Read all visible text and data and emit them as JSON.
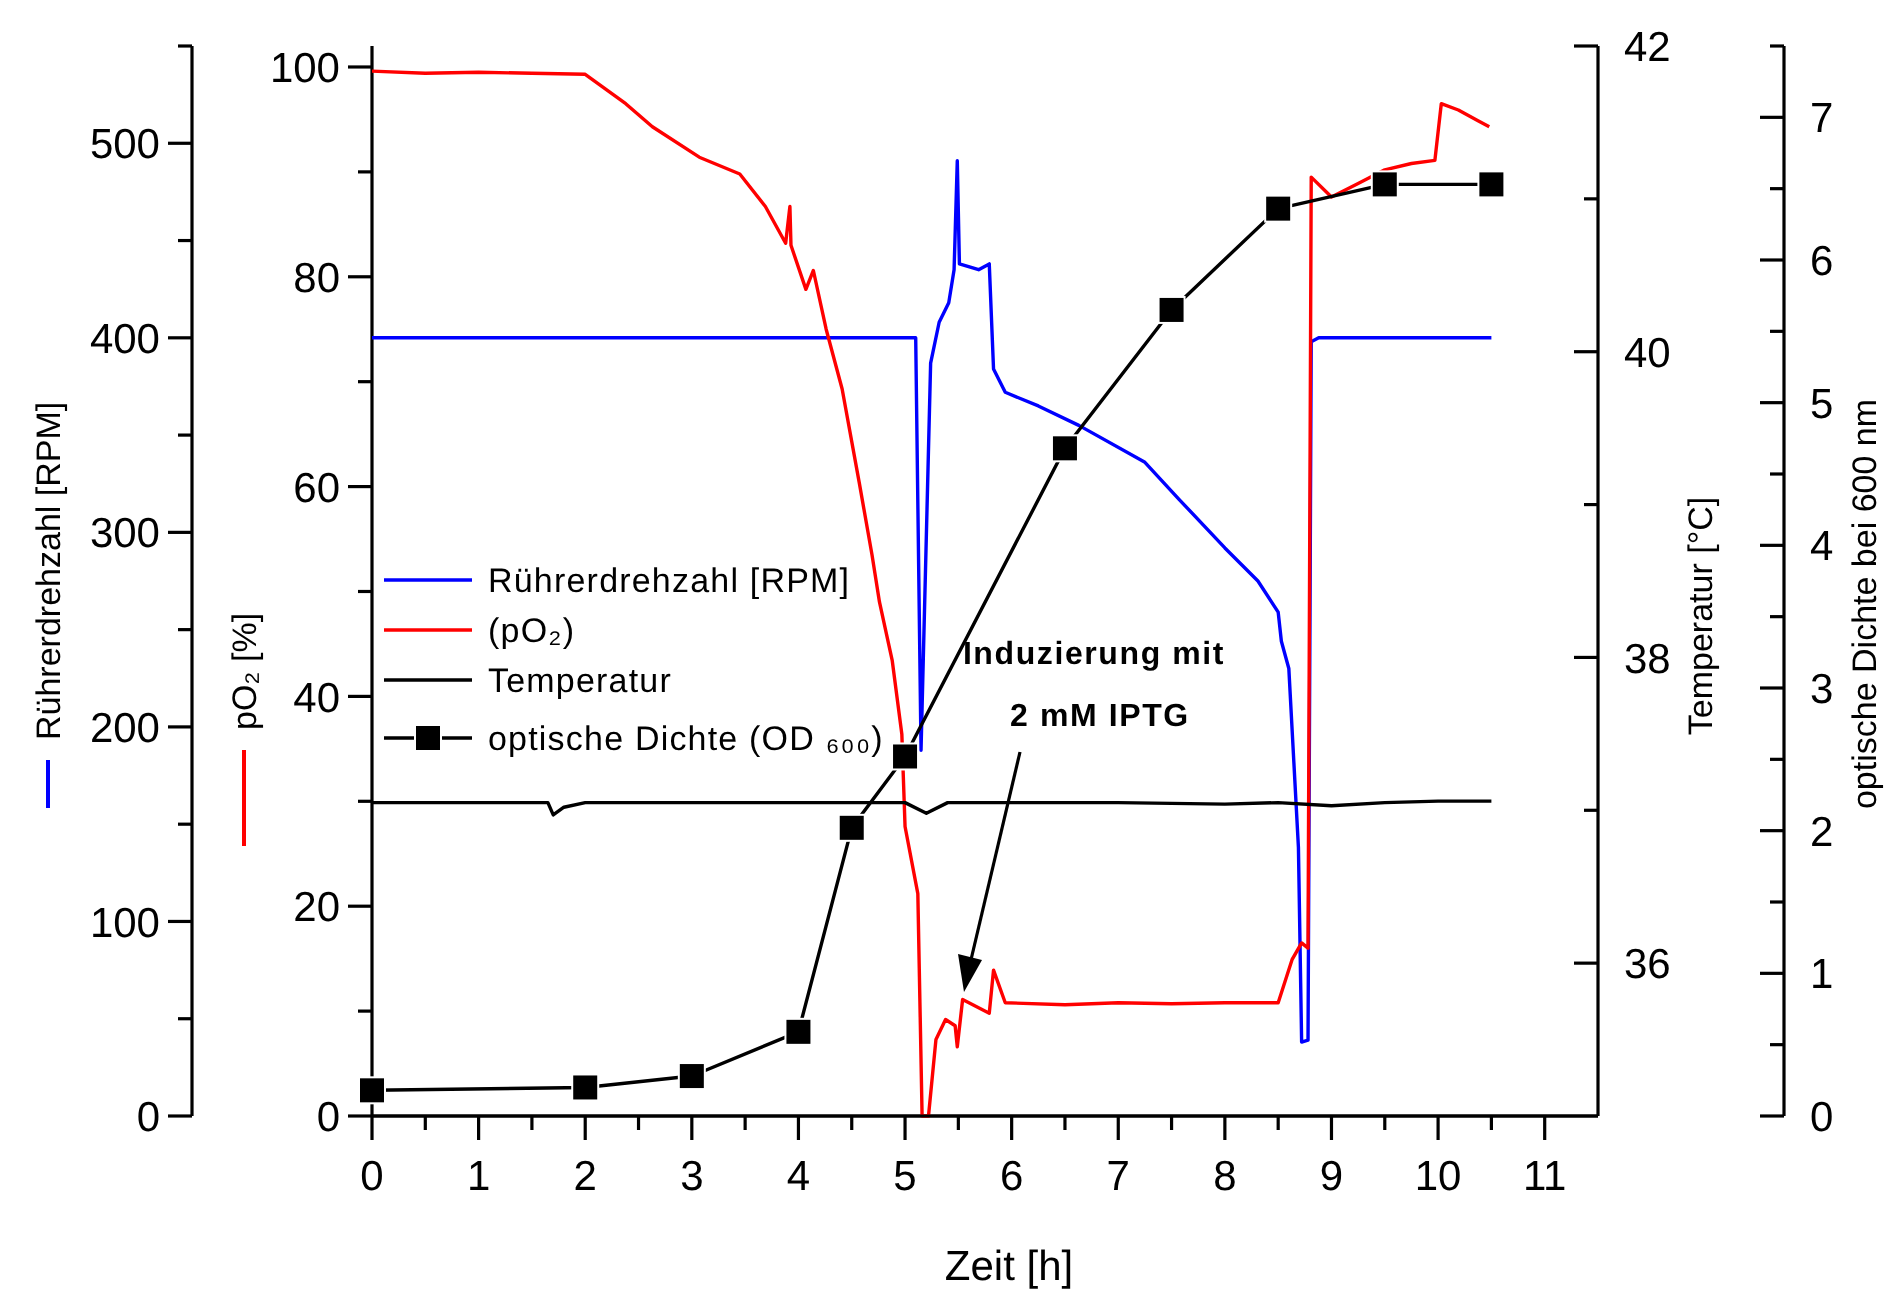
{
  "chart_data": [
    {
      "type": "line",
      "xlabel": "Zeit [h]",
      "ylabel": "pO₂ [%]",
      "y2label": "Rührerdrehzahl [RPM]",
      "xlim": [
        0,
        11.5
      ],
      "xticks": [
        0,
        {
          "value": 0.5,
          "label": null
        },
        1,
        {
          "value": 1.5,
          "label": null
        },
        2,
        {
          "value": 2.5,
          "label": null
        },
        3,
        {
          "value": 3.5,
          "label": null
        },
        4,
        {
          "value": 4.5,
          "label": null
        },
        5,
        {
          "value": 5.5,
          "label": null
        },
        6,
        {
          "value": 6.5,
          "label": null
        },
        7,
        {
          "value": 7.5,
          "label": null
        },
        8,
        {
          "value": 8.5,
          "label": null
        },
        9,
        {
          "value": 9.5,
          "label": null
        },
        10,
        {
          "value": 10.5,
          "label": null
        },
        11
      ],
      "ylim": [
        0,
        102
      ],
      "yticks": [
        0,
        {
          "value": 10,
          "label": null
        },
        20,
        {
          "value": 30,
          "label": null
        },
        40,
        {
          "value": 50,
          "label": null
        },
        60,
        {
          "value": 70,
          "label": null
        },
        80,
        {
          "value": 90,
          "label": null
        },
        100
      ],
      "y2lim": [
        0,
        550
      ],
      "y2ticks": [
        0,
        100,
        200,
        300,
        400,
        500
      ],
      "grid": false,
      "legend": "left",
      "line_style": "solid",
      "marker": "none",
      "series": [
        {
          "name": "Rührerdrehzahl [RPM]",
          "color": "#0000ff",
          "axis": "y2",
          "x": [
            0,
            1,
            2,
            3,
            4,
            5.1,
            5.15,
            5.24,
            5.32,
            5.41,
            5.46,
            5.49,
            5.51,
            5.69,
            5.79,
            5.83,
            5.94,
            6.25,
            6.63,
            7.25,
            7.57,
            8.0,
            8.31,
            8.5,
            8.53,
            8.6,
            8.69,
            8.72,
            8.78,
            8.81,
            8.88,
            9.5,
            10.5
          ],
          "values": [
            400,
            400,
            400,
            400,
            400,
            400,
            188,
            387,
            408,
            418,
            435,
            491,
            438,
            435,
            438,
            384,
            372,
            365,
            355,
            336,
            317,
            292,
            275,
            259,
            244,
            230,
            138,
            38,
            39,
            398,
            400,
            400,
            400
          ]
        },
        {
          "name": "(pO₂)",
          "color": "#ff0000",
          "x": [
            0,
            0.5,
            1,
            1.5,
            2,
            2.38,
            2.63,
            3.07,
            3.45,
            3.69,
            3.88,
            3.92,
            3.93,
            4.07,
            4.14,
            4.26,
            4.41,
            4.57,
            4.69,
            4.76,
            4.88,
            4.97,
            5.0,
            5.12,
            5.16,
            5.22,
            5.29,
            5.38,
            5.47,
            5.49,
            5.54,
            5.79,
            5.83,
            5.94,
            6.5,
            7,
            7.5,
            8,
            8.5,
            8.63,
            8.72,
            8.78,
            8.81,
            9.0,
            9.25,
            9.5,
            9.75,
            9.97,
            10.03,
            10.19,
            10.37,
            10.48
          ],
          "values": [
            99.6,
            99.4,
            99.5,
            99.4,
            99.3,
            96.5,
            94.3,
            91.4,
            89.8,
            86.7,
            83.2,
            86.7,
            83,
            78.8,
            80.6,
            75,
            69.3,
            60.4,
            53.5,
            49,
            43.4,
            36.4,
            27.6,
            21.2,
            0,
            0,
            7.3,
            9.2,
            8.6,
            6.6,
            11.1,
            9.8,
            13.9,
            10.8,
            10.6,
            10.8,
            10.7,
            10.8,
            10.8,
            14.9,
            16.5,
            16,
            89.5,
            87.6,
            88.9,
            90.2,
            90.8,
            91.1,
            96.5,
            95.9,
            94.9,
            94.3
          ]
        }
      ],
      "annotations": [
        "Induzierung mit\n2 mM IPTG"
      ]
    },
    {
      "type": "line",
      "ylabel": "Temperatur [°C]",
      "y2label": "optische Dichte bei 600 nm",
      "xlim": [
        0,
        11.5
      ],
      "tick_labels": "y",
      "ylim": [
        35,
        42
      ],
      "yticks": [
        36,
        {
          "value": 37,
          "label": null
        },
        38,
        {
          "value": 39,
          "label": null
        },
        40,
        {
          "value": 41,
          "label": null
        },
        42
      ],
      "y2lim": [
        0,
        7.5
      ],
      "y2ticks": [
        0,
        1,
        2,
        3,
        4,
        5,
        6,
        7
      ],
      "grid": false,
      "legend": "left",
      "line_style": "solid",
      "series": [
        {
          "name": "Temperatur",
          "color": "#000000",
          "marker": "none",
          "x": [
            0,
            1,
            1.65,
            1.7,
            1.8,
            2,
            3,
            4,
            5,
            5.2,
            5.4,
            6,
            7,
            8,
            8.5,
            9,
            9.5,
            10,
            10.5
          ],
          "values": [
            37.05,
            37.05,
            37.05,
            36.97,
            37.02,
            37.05,
            37.05,
            37.05,
            37.05,
            36.98,
            37.05,
            37.05,
            37.05,
            37.04,
            37.05,
            37.03,
            37.05,
            37.06,
            37.06
          ]
        },
        {
          "name": "optische Dichte (OD ₆₀₀)",
          "color": "#000000",
          "axis": "y2",
          "marker": "square",
          "x": [
            0,
            2,
            3,
            4,
            4.5,
            5,
            6.5,
            7.5,
            8.5,
            9.5,
            10.5
          ],
          "values": [
            0.18,
            0.2,
            0.28,
            0.59,
            2.02,
            2.52,
            4.68,
            5.65,
            6.36,
            6.53,
            6.53
          ]
        }
      ]
    }
  ]
}
